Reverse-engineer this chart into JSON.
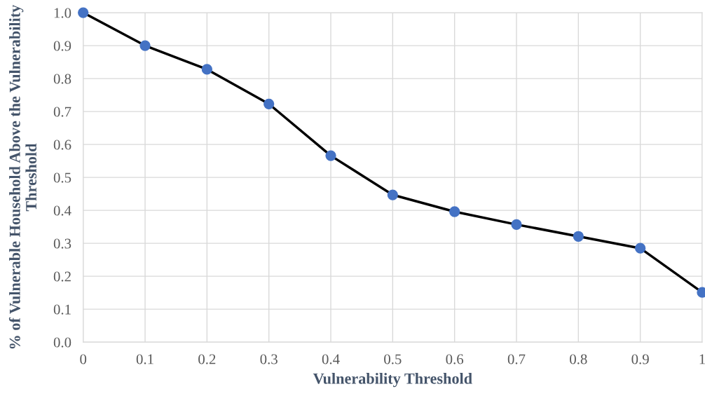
{
  "chart_data": {
    "type": "line",
    "xlabel": "Vulnerability Threshold",
    "ylabel": "% of Vulnerable Household Above the Vulnerability Threshold",
    "x": [
      0,
      0.1,
      0.2,
      0.3,
      0.4,
      0.5,
      0.6,
      0.7,
      0.8,
      0.9,
      1
    ],
    "series": [
      {
        "color": "#000000",
        "colors": [
          "#4472c4",
          "#4472c4",
          "#4472c4",
          "#4472c4",
          "#4472c4",
          "#4472c4",
          "#4472c4",
          "#4472c4",
          "#4472c4",
          "#4472c4",
          "#4472c4"
        ],
        "values": [
          1.0,
          0.9,
          0.828,
          0.723,
          0.566,
          0.447,
          0.396,
          0.357,
          0.321,
          0.285,
          0.151
        ]
      }
    ],
    "xlim": [
      0,
      1
    ],
    "xticks": [
      0,
      0.1,
      0.2,
      0.3,
      0.4,
      0.5,
      0.6,
      0.7,
      0.8,
      0.9,
      1
    ],
    "ylim": [
      0,
      1
    ],
    "yticks": [
      {
        "value": 0,
        "label": "0.0"
      },
      0.1,
      0.2,
      0.3,
      0.4,
      0.5,
      0.6,
      0.7,
      0.8,
      0.9,
      {
        "value": 1,
        "label": "1.0"
      }
    ],
    "grid": true,
    "marker": "circle",
    "line_style": "solid",
    "legend": false
  }
}
